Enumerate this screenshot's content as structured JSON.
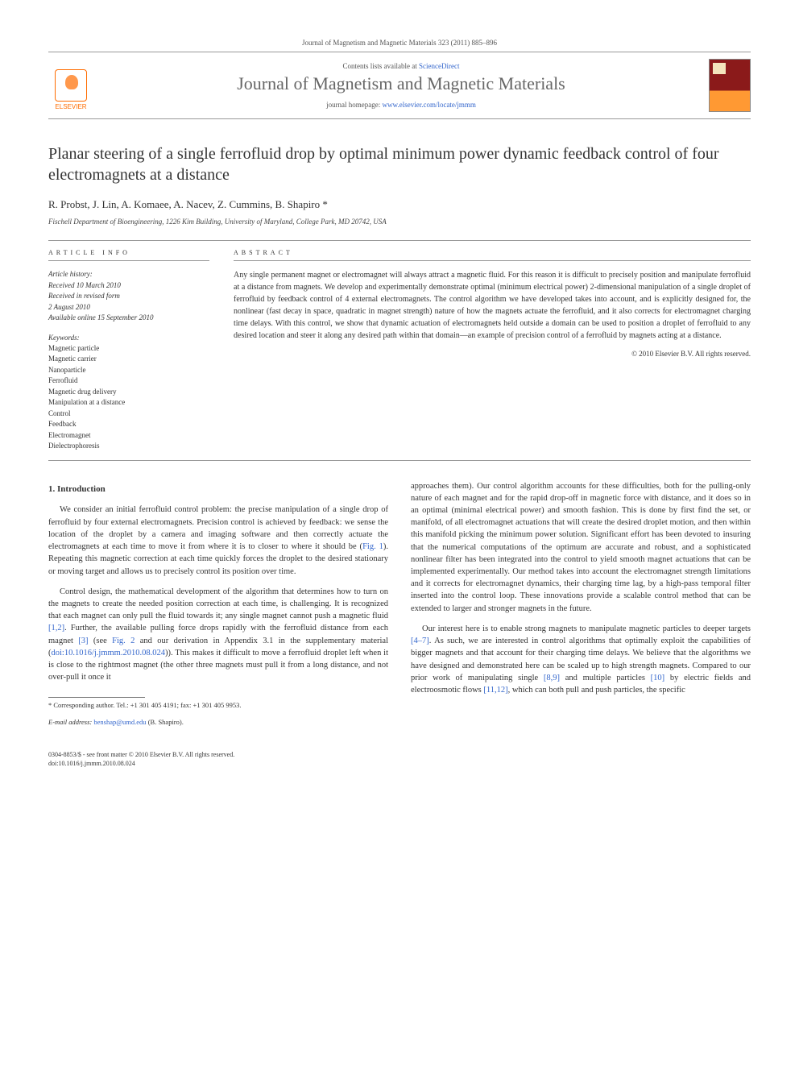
{
  "journal_ref": "Journal of Magnetism and Magnetic Materials 323 (2011) 885–896",
  "banner": {
    "contents_prefix": "Contents lists available at ",
    "contents_link": "ScienceDirect",
    "journal_name": "Journal of Magnetism and Magnetic Materials",
    "homepage_prefix": "journal homepage: ",
    "homepage_link": "www.elsevier.com/locate/jmmm",
    "publisher": "ELSEVIER"
  },
  "title": "Planar steering of a single ferrofluid drop by optimal minimum power dynamic feedback control of four electromagnets at a distance",
  "authors": "R. Probst, J. Lin, A. Komaee, A. Nacev, Z. Cummins, B. Shapiro *",
  "affiliation": "Fischell Department of Bioengineering, 1226 Kim Building, University of Maryland, College Park, MD 20742, USA",
  "info": {
    "heading": "ARTICLE INFO",
    "history_label": "Article history:",
    "history": [
      "Received 10 March 2010",
      "Received in revised form",
      "2 August 2010",
      "Available online 15 September 2010"
    ],
    "keywords_label": "Keywords:",
    "keywords": [
      "Magnetic particle",
      "Magnetic carrier",
      "Nanoparticle",
      "Ferrofluid",
      "Magnetic drug delivery",
      "Manipulation at a distance",
      "Control",
      "Feedback",
      "Electromagnet",
      "Dielectrophoresis"
    ]
  },
  "abstract": {
    "heading": "ABSTRACT",
    "text": "Any single permanent magnet or electromagnet will always attract a magnetic fluid. For this reason it is difficult to precisely position and manipulate ferrofluid at a distance from magnets. We develop and experimentally demonstrate optimal (minimum electrical power) 2-dimensional manipulation of a single droplet of ferrofluid by feedback control of 4 external electromagnets. The control algorithm we have developed takes into account, and is explicitly designed for, the nonlinear (fast decay in space, quadratic in magnet strength) nature of how the magnets actuate the ferrofluid, and it also corrects for electromagnet charging time delays. With this control, we show that dynamic actuation of electromagnets held outside a domain can be used to position a droplet of ferrofluid to any desired location and steer it along any desired path within that domain—an example of precision control of a ferrofluid by magnets acting at a distance.",
    "copyright": "© 2010 Elsevier B.V. All rights reserved."
  },
  "section1": {
    "heading": "1. Introduction",
    "p1": "We consider an initial ferrofluid control problem: the precise manipulation of a single drop of ferrofluid by four external electromagnets. Precision control is achieved by feedback: we sense the location of the droplet by a camera and imaging software and then correctly actuate the electromagnets at each time to move it from where it is to closer to where it should be (",
    "p1_fig": "Fig. 1",
    "p1b": "). Repeating this magnetic correction at each time quickly forces the droplet to the desired stationary or moving target and allows us to precisely control its position over time.",
    "p2a": "Control design, the mathematical development of the algorithm that determines how to turn on the magnets to create the needed position correction at each time, is challenging. It is recognized that each magnet can only pull the fluid towards it; any single magnet cannot push a magnetic fluid ",
    "p2_ref1": "[1,2]",
    "p2b": ". Further, the available pulling force drops rapidly with the ferrofluid distance from each magnet ",
    "p2_ref2": "[3]",
    "p2c": " (see ",
    "p2_fig": "Fig. 2",
    "p2d": " and our derivation in Appendix 3.1 in the supplementary material (",
    "p2_doi": "doi:10.1016/j.jmmm.2010.08.024",
    "p2e": ")). This makes it difficult to move a ferrofluid droplet left when it is close to the rightmost magnet (the other three magnets must pull it from a long distance, and not over-pull it once it ",
    "p3a": "approaches them). Our control algorithm accounts for these difficulties, both for the pulling-only nature of each magnet and for the rapid drop-off in magnetic force with distance, and it does so in an optimal (minimal electrical power) and smooth fashion. This is done by first find the set, or manifold, of all electromagnet actuations that will create the desired droplet motion, and then within this manifold picking the minimum power solution. Significant effort has been devoted to insuring that the numerical computations of the optimum are accurate and robust, and a sophisticated nonlinear filter has been integrated into the control to yield smooth magnet actuations that can be implemented experimentally. Our method takes into account the electromagnet strength limitations and it corrects for electromagnet dynamics, their charging time lag, by a high-pass temporal filter inserted into the control loop. These innovations provide a scalable control method that can be extended to larger and stronger magnets in the future.",
    "p4a": "Our interest here is to enable strong magnets to manipulate magnetic particles to deeper targets ",
    "p4_ref1": "[4–7]",
    "p4b": ". As such, we are interested in control algorithms that optimally exploit the capabilities of bigger magnets and that account for their charging time delays. We believe that the algorithms we have designed and demonstrated here can be scaled up to high strength magnets. Compared to our prior work of manipulating single ",
    "p4_ref2": "[8,9]",
    "p4c": " and multiple particles ",
    "p4_ref3": "[10]",
    "p4d": " by electric fields and electroosmotic flows ",
    "p4_ref4": "[11,12]",
    "p4e": ", which can both pull and push particles, the specific"
  },
  "footnote": {
    "corr": "* Corresponding author. Tel.: +1 301 405 4191; fax: +1 301 405 9953.",
    "email_label": "E-mail address: ",
    "email": "benshap@umd.edu",
    "email_suffix": " (B. Shapiro)."
  },
  "footer": {
    "line1": "0304-8853/$ - see front matter © 2010 Elsevier B.V. All rights reserved.",
    "line2": "doi:10.1016/j.jmmm.2010.08.024"
  },
  "colors": {
    "link": "#3366cc",
    "elsevier_orange": "#ff6c00",
    "text": "#333333",
    "rule": "#999999"
  }
}
